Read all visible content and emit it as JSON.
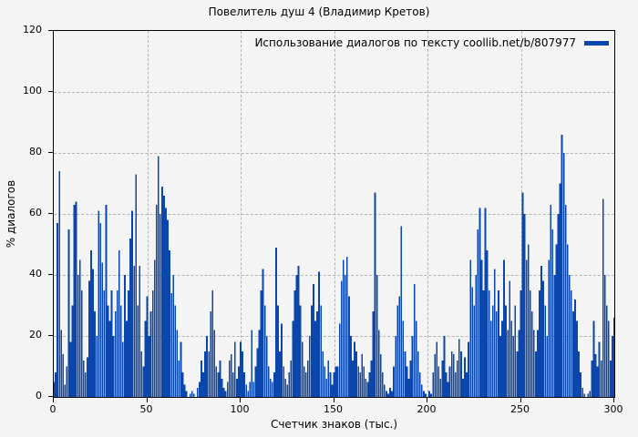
{
  "title": "Повелитель душ 4 (Владимир Кретов)",
  "legend": {
    "label": "Использование диалогов по тексту coollib.net/b/807977",
    "swatch_color": "#0b46ad"
  },
  "axes": {
    "x": {
      "label": "Счетчик знаков (тыс.)"
    },
    "y": {
      "label": "% диалогов"
    }
  },
  "colors": {
    "bar": "#0b46ad",
    "background": "#f4f4f4",
    "grid": "#b4b4b4",
    "border": "#000000"
  },
  "chart_data": {
    "type": "bar",
    "title": "Повелитель душ 4 (Владимир Кретов)",
    "xlabel": "Счетчик знаков (тыс.)",
    "ylabel": "% диалогов",
    "xlim": [
      0,
      300
    ],
    "ylim": [
      0,
      120
    ],
    "x_ticks": [
      0,
      50,
      100,
      150,
      200,
      250,
      300
    ],
    "y_ticks": [
      0,
      20,
      40,
      60,
      80,
      100,
      120
    ],
    "grid": true,
    "legend_position": "top-right",
    "x_step": 1,
    "series": [
      {
        "name": "Использование диалогов по тексту coollib.net/b/807977",
        "color": "#0b46ad",
        "values": [
          5,
          8,
          57,
          74,
          22,
          14,
          4,
          10,
          55,
          18,
          30,
          63,
          64,
          40,
          45,
          35,
          12,
          8,
          13,
          38,
          48,
          42,
          28,
          20,
          61,
          57,
          44,
          35,
          63,
          30,
          25,
          35,
          20,
          28,
          35,
          48,
          30,
          18,
          40,
          25,
          35,
          52,
          61,
          43,
          73,
          30,
          43,
          15,
          10,
          25,
          33,
          20,
          28,
          35,
          45,
          63,
          79,
          60,
          69,
          66,
          62,
          58,
          48,
          34,
          40,
          30,
          22,
          12,
          18,
          8,
          4,
          2,
          0,
          1,
          2,
          1,
          0,
          3,
          5,
          12,
          8,
          15,
          20,
          15,
          28,
          35,
          22,
          10,
          8,
          12,
          6,
          3,
          2,
          5,
          12,
          14,
          8,
          18,
          6,
          10,
          18,
          15,
          8,
          4,
          2,
          5,
          22,
          5,
          10,
          16,
          22,
          35,
          42,
          30,
          20,
          10,
          6,
          5,
          8,
          49,
          30,
          15,
          24,
          10,
          6,
          4,
          8,
          12,
          25,
          35,
          40,
          43,
          30,
          18,
          10,
          8,
          12,
          20,
          30,
          37,
          25,
          28,
          41,
          30,
          15,
          10,
          6,
          12,
          8,
          4,
          8,
          10,
          10,
          24,
          38,
          45,
          40,
          46,
          33,
          20,
          12,
          18,
          15,
          10,
          8,
          14,
          10,
          6,
          5,
          8,
          12,
          28,
          67,
          40,
          22,
          14,
          8,
          4,
          2,
          1,
          3,
          2,
          10,
          20,
          30,
          33,
          56,
          25,
          15,
          10,
          6,
          12,
          20,
          37,
          25,
          15,
          8,
          4,
          2,
          1,
          0,
          2,
          1,
          8,
          14,
          18,
          10,
          6,
          12,
          20,
          8,
          5,
          10,
          15,
          14,
          8,
          12,
          19,
          15,
          6,
          13,
          8,
          18,
          45,
          36,
          30,
          40,
          55,
          62,
          45,
          35,
          62,
          48,
          35,
          25,
          30,
          42,
          28,
          35,
          20,
          25,
          45,
          30,
          22,
          38,
          25,
          20,
          30,
          15,
          22,
          35,
          67,
          60,
          45,
          50,
          35,
          28,
          22,
          15,
          22,
          35,
          43,
          38,
          30,
          20,
          45,
          63,
          55,
          40,
          50,
          60,
          70,
          86,
          80,
          63,
          50,
          40,
          35,
          28,
          32,
          25,
          15,
          8,
          3,
          1,
          0,
          1,
          2,
          12,
          25,
          14,
          10,
          18,
          12,
          65,
          40,
          30,
          25,
          12,
          20,
          26
        ]
      }
    ]
  }
}
